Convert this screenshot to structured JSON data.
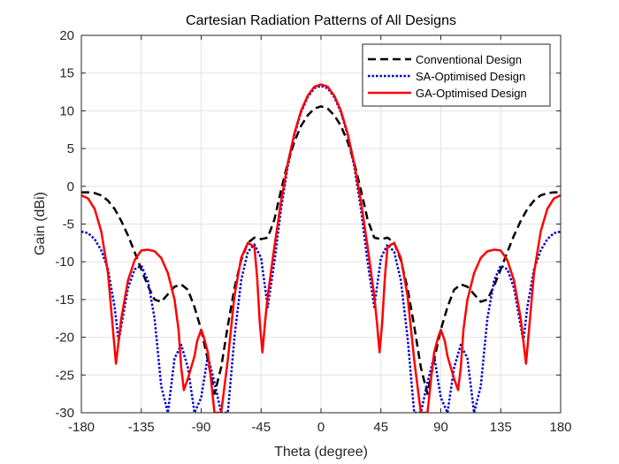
{
  "chart_data": {
    "type": "line",
    "title": "Cartesian Radiation Patterns of All Designs",
    "xlabel": "Theta (degree)",
    "ylabel": "Gain (dBi)",
    "xlim": [
      -180,
      180
    ],
    "ylim": [
      -30,
      20
    ],
    "xticks": [
      -180,
      -135,
      -90,
      -45,
      0,
      45,
      90,
      135,
      180
    ],
    "yticks": [
      -30,
      -25,
      -20,
      -15,
      -10,
      -5,
      0,
      5,
      10,
      15,
      20
    ],
    "grid": true,
    "legend_position": "top-right",
    "series": [
      {
        "name": "Conventional Design",
        "color": "#000000",
        "style": "dashed",
        "x": [
          0,
          5,
          10,
          15,
          20,
          25,
          30,
          35,
          40,
          45,
          50,
          55,
          60,
          65,
          70,
          75,
          80,
          85,
          90,
          95,
          100,
          105,
          110,
          115,
          120,
          125,
          130,
          135,
          140,
          145,
          150,
          155,
          160,
          165,
          170,
          175,
          180
        ],
        "y": [
          10.6,
          10.3,
          9.4,
          8,
          5.9,
          3.1,
          -0.5,
          -4.4,
          -6.8,
          -7,
          -6.8,
          -7.5,
          -9.8,
          -13.5,
          -18.5,
          -24,
          -27.5,
          -23,
          -19,
          -16,
          -13.7,
          -13,
          -13.3,
          -14.3,
          -15.3,
          -15,
          -13.2,
          -11,
          -8.7,
          -6.5,
          -4.6,
          -3,
          -1.9,
          -1.2,
          -0.9,
          -0.8,
          -0.8
        ]
      },
      {
        "name": "SA-Optimised Design",
        "color": "#0000cc",
        "style": "dotted",
        "x": [
          0,
          5,
          10,
          15,
          20,
          25,
          30,
          35,
          40,
          45,
          50,
          55,
          60,
          65,
          70,
          75,
          80,
          85,
          90,
          95,
          100,
          105,
          110,
          115,
          120,
          125,
          130,
          135,
          140,
          145,
          150,
          152,
          155,
          160,
          165,
          170,
          175,
          180
        ],
        "y": [
          13.3,
          13,
          11.8,
          9.8,
          6.8,
          2.6,
          -3,
          -10,
          -16,
          -9.5,
          -7.7,
          -8.7,
          -12.5,
          -20,
          -30,
          -30,
          -26,
          -22.5,
          -28,
          -30,
          -24,
          -21,
          -22.8,
          -30,
          -26.5,
          -17.5,
          -12.5,
          -10.5,
          -11,
          -13.5,
          -18.5,
          -20.5,
          -16,
          -11,
          -8.5,
          -7,
          -6.2,
          -6
        ]
      },
      {
        "name": "GA-Optimised Design",
        "color": "#ff0000",
        "style": "solid",
        "x": [
          0,
          5,
          10,
          15,
          20,
          25,
          30,
          35,
          40,
          42,
          44,
          46,
          48,
          50,
          55,
          60,
          65,
          70,
          75,
          80,
          83,
          85,
          88,
          90,
          93,
          95,
          100,
          103,
          105,
          107,
          110,
          115,
          120,
          125,
          130,
          135,
          140,
          145,
          150,
          152,
          154,
          156,
          160,
          165,
          170,
          175,
          180
        ],
        "y": [
          13.5,
          13.2,
          12,
          10,
          7,
          3,
          -2,
          -8,
          -14.5,
          -18,
          -22,
          -18,
          -12,
          -8,
          -7.5,
          -9.5,
          -14.5,
          -23,
          -30,
          -30,
          -25,
          -22,
          -20,
          -19,
          -20.5,
          -22.5,
          -25.5,
          -27,
          -24,
          -19,
          -15,
          -11.5,
          -9.5,
          -8.6,
          -8.4,
          -8.5,
          -9.8,
          -12.5,
          -17.5,
          -20.5,
          -23.5,
          -19.5,
          -11.5,
          -6,
          -3,
          -1.6,
          -1.2
        ]
      }
    ]
  }
}
